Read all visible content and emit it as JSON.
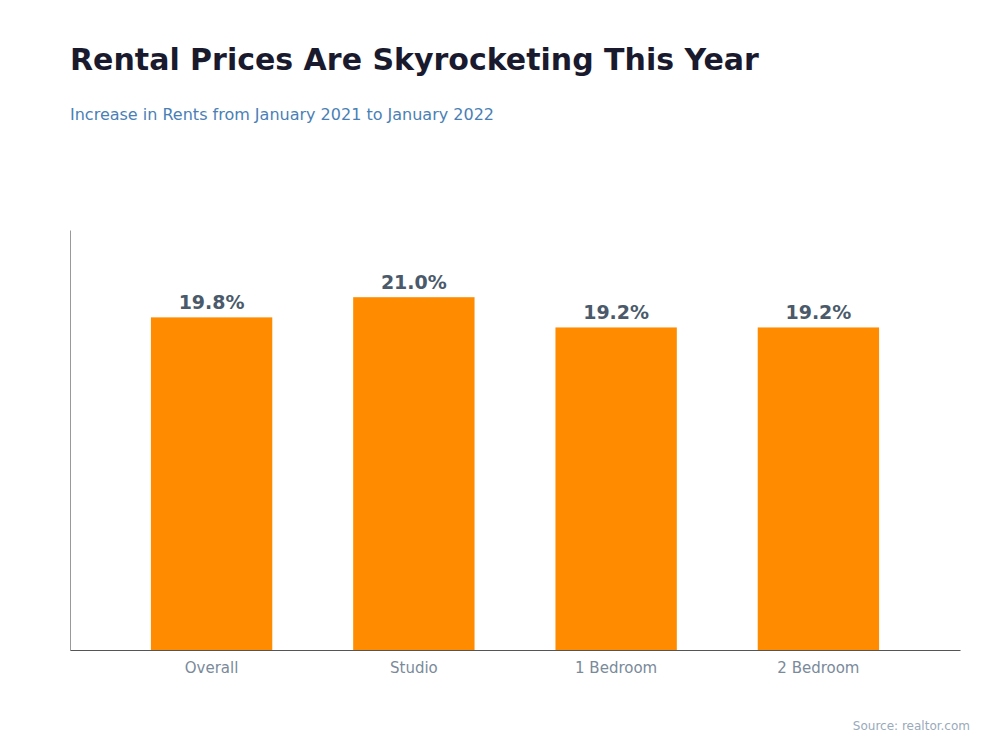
{
  "chart_data": {
    "type": "bar",
    "title": "Rental Prices Are Skyrocketing This Year",
    "subtitle": "Increase in Rents from January 2021 to January 2022",
    "categories": [
      "Overall",
      "Studio",
      "1 Bedroom",
      "2 Bedroom"
    ],
    "values": [
      19.8,
      21.0,
      19.2,
      19.2
    ],
    "value_labels": [
      "19.8%",
      "21.0%",
      "19.2%",
      "19.2%"
    ],
    "data_labels": true,
    "color": "#FF8C00",
    "ylim": [
      0,
      25
    ],
    "grid": false,
    "tick_labels": "x",
    "annotations": [
      "Source: realtor.com"
    ]
  }
}
